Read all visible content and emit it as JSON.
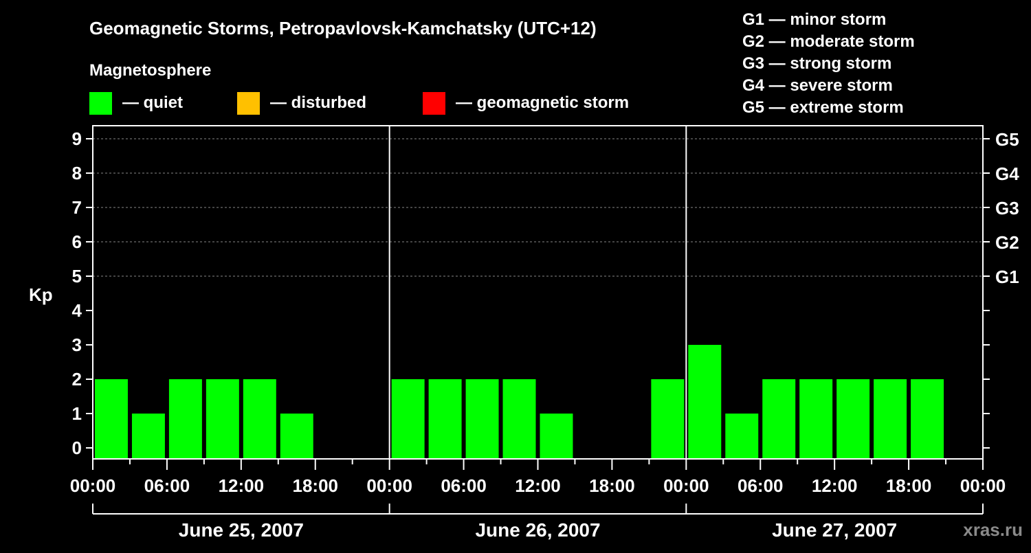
{
  "chart_data": {
    "type": "bar",
    "title": "Geomagnetic Storms, Petropavlovsk-Kamchatsky (UTC+12)",
    "ylabel": "Kp",
    "ylim": [
      0,
      9
    ],
    "yticks": [
      "0",
      "1",
      "2",
      "3",
      "4",
      "5",
      "6",
      "7",
      "8",
      "9"
    ],
    "right_ticks": [
      {
        "kp": 5,
        "label": "G1"
      },
      {
        "kp": 6,
        "label": "G2"
      },
      {
        "kp": 7,
        "label": "G3"
      },
      {
        "kp": 8,
        "label": "G4"
      },
      {
        "kp": 9,
        "label": "G5"
      }
    ],
    "legend_title": "Magnetosphere",
    "legend": [
      {
        "label": "— quiet",
        "color": "#00ff00"
      },
      {
        "label": "— disturbed",
        "color": "#ffc000"
      },
      {
        "label": "— geomagnetic storm",
        "color": "#ff0000"
      }
    ],
    "scale": [
      "G1 — minor storm",
      "G2 — moderate storm",
      "G3 — strong storm",
      "G4 — severe storm",
      "G5 — extreme storm"
    ],
    "xtick_labels": [
      "00:00",
      "06:00",
      "12:00",
      "18:00"
    ],
    "final_xtick_label": "00:00",
    "days": [
      {
        "label": "June 25, 2007",
        "values": [
          2,
          1,
          2,
          2,
          2,
          1,
          null,
          null
        ]
      },
      {
        "label": "June 26, 2007",
        "values": [
          2,
          2,
          2,
          2,
          1,
          null,
          null,
          2
        ]
      },
      {
        "label": "June 27, 2007",
        "values": [
          3,
          1,
          2,
          2,
          2,
          2,
          2,
          null
        ]
      }
    ],
    "grid": true
  },
  "watermark": "xras.ru"
}
